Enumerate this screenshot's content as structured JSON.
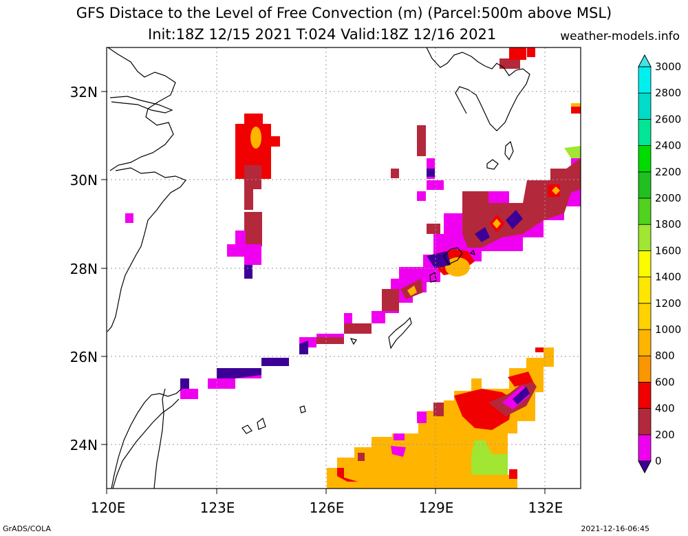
{
  "header": {
    "title_line1": "GFS Distace to the Level of Free Convection (m) (Parcel:500m above MSL)",
    "title_line2": "Init:18Z 12/15 2021 T:024 Valid:18Z 12/16 2021",
    "site": "weather-models.info"
  },
  "footer": {
    "left": "GrADS/COLA",
    "right": "2021-12-16-06:45"
  },
  "map": {
    "lon_range": [
      120,
      133
    ],
    "lat_range": [
      23,
      33
    ],
    "x_ticks": [
      "120E",
      "123E",
      "126E",
      "129E",
      "132E"
    ],
    "y_ticks": [
      "24N",
      "26N",
      "28N",
      "30N",
      "32N"
    ],
    "grid": "dotted"
  },
  "colorbar": {
    "labels": [
      "0",
      "200",
      "400",
      "600",
      "800",
      "1000",
      "1200",
      "1400",
      "1600",
      "1800",
      "2000",
      "2200",
      "2400",
      "2600",
      "2800",
      "3000"
    ],
    "colors": [
      "#3c0096",
      "#f000f0",
      "#b4283c",
      "#f00000",
      "#fa9600",
      "#ffb400",
      "#ffd200",
      "#ffe600",
      "#fafa00",
      "#a0e632",
      "#50d21e",
      "#20c020",
      "#00dc00",
      "#00e696",
      "#00dcc8",
      "#00f0f0",
      "#40e6e6"
    ]
  }
}
